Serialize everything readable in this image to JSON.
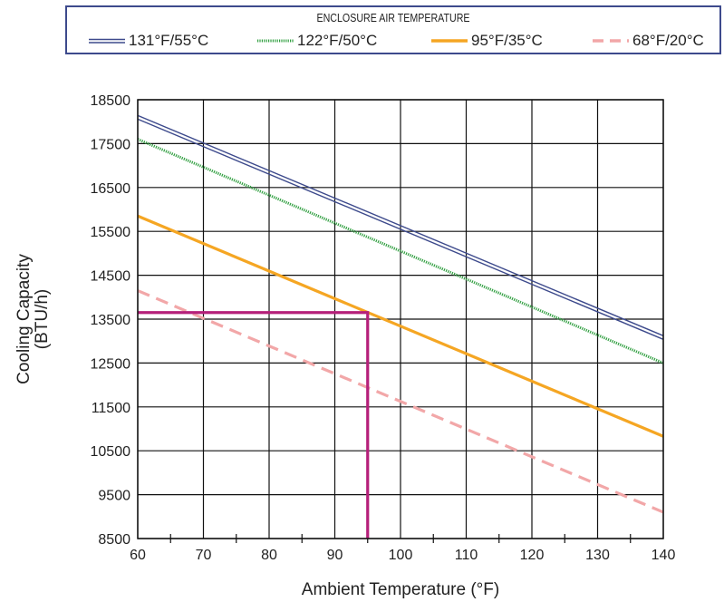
{
  "chart_data": {
    "type": "line",
    "legend_title": "ENCLOSURE AIR TEMPERATURE",
    "legend_placement": "top",
    "xlabel": "Ambient Temperature (°F)",
    "ylabel_lines": [
      "Cooling Capacity",
      "(BTU/h)"
    ],
    "xlim": [
      60,
      140
    ],
    "ylim": [
      8500,
      18500
    ],
    "x_ticks": [
      60,
      70,
      80,
      90,
      100,
      110,
      120,
      130,
      140
    ],
    "y_ticks": [
      8500,
      9500,
      10500,
      11500,
      12500,
      13500,
      14500,
      15500,
      16500,
      17500,
      18500
    ],
    "grid": true,
    "series": [
      {
        "name": "131°F/55°C",
        "color": "#3d4a8c",
        "style": "double",
        "x": [
          60,
          140
        ],
        "y": [
          18100,
          13080
        ]
      },
      {
        "name": "122°F/50°C",
        "color": "#2f9e3f",
        "style": "dotted",
        "x": [
          60,
          140
        ],
        "y": [
          17600,
          12500
        ]
      },
      {
        "name": "95°F/35°C",
        "color": "#f5a623",
        "style": "solid",
        "x": [
          60,
          140
        ],
        "y": [
          15850,
          10830
        ]
      },
      {
        "name": "68°F/20°C",
        "color": "#f2a7a8",
        "style": "dashed",
        "x": [
          60,
          140
        ],
        "y": [
          14150,
          9100
        ]
      }
    ],
    "reference": {
      "color": "#b5207a",
      "x": 95,
      "y": 13650
    }
  }
}
